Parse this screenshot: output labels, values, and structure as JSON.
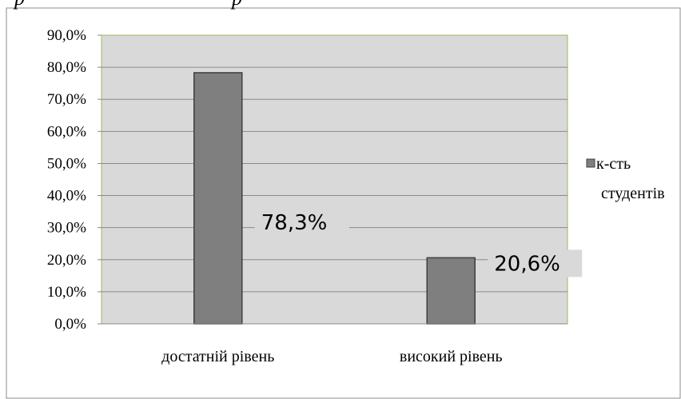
{
  "chart_data": {
    "type": "bar",
    "categories": [
      "достатній рівень",
      "високий рівень"
    ],
    "series": [
      {
        "name": "к-сть студентів",
        "values": [
          78.3,
          20.6
        ]
      }
    ],
    "data_labels": [
      "78,3%",
      "20,6%"
    ],
    "yticks": [
      "0,0%",
      "10,0%",
      "20,0%",
      "30,0%",
      "40,0%",
      "50,0%",
      "60,0%",
      "70,0%",
      "80,0%",
      "90,0%"
    ],
    "ylim": [
      0,
      90
    ],
    "grid": true,
    "legend_position": "right",
    "legend_lines": [
      "к-сть",
      "студентів"
    ],
    "colors": {
      "bar": "#7f7f7f",
      "plot_bg": "#d9d9d9",
      "plot_border": "#9bbb59"
    },
    "title": "",
    "xlabel": "",
    "ylabel": ""
  }
}
